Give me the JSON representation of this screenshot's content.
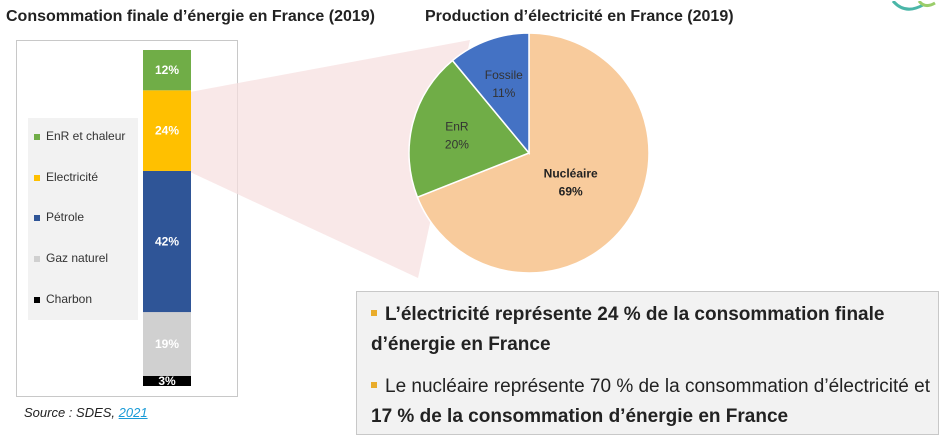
{
  "left_title": "Consommation finale d’énergie en France (2019)",
  "right_title": "Production d’électricité en France (2019)",
  "chart_data": [
    {
      "type": "bar",
      "stacked": true,
      "title": "Consommation finale d’énergie en France (2019)",
      "legend": [
        {
          "name": "EnR et chaleur",
          "color": "#70ad47"
        },
        {
          "name": "Electricité",
          "color": "#ffc000"
        },
        {
          "name": "Pétrole",
          "color": "#2f5597"
        },
        {
          "name": "Gaz naturel",
          "color": "#d0d0d0"
        },
        {
          "name": "Charbon",
          "color": "#000000"
        }
      ],
      "segments": [
        {
          "name": "Charbon",
          "value": 3,
          "label": "3%",
          "color": "#000000",
          "label_color": "#ffffff"
        },
        {
          "name": "Gaz naturel",
          "value": 19,
          "label": "19%",
          "color": "#d0d0d0",
          "label_color": "#ffffff"
        },
        {
          "name": "Pétrole",
          "value": 42,
          "label": "42%",
          "color": "#2f5597",
          "label_color": "#ffffff"
        },
        {
          "name": "Electricité",
          "value": 24,
          "label": "24%",
          "color": "#ffc000",
          "label_color": "#ffffff"
        },
        {
          "name": "EnR et chaleur",
          "value": 12,
          "label": "12%",
          "color": "#70ad47",
          "label_color": "#ffffff"
        }
      ]
    },
    {
      "type": "pie",
      "title": "Production d’électricité en France (2019)",
      "slices": [
        {
          "name": "Nucléaire",
          "value": 69,
          "label": "69%",
          "color": "#f8cb9c",
          "label_color": "#222222",
          "bold": true
        },
        {
          "name": "EnR",
          "value": 20,
          "label": "20%",
          "color": "#70ad47",
          "label_color": "#333333",
          "bold": false
        },
        {
          "name": "Fossile",
          "value": 11,
          "label": "11%",
          "color": "#4472c4",
          "label_color": "#333333",
          "bold": false
        }
      ]
    }
  ],
  "callout": {
    "bullet1": "L’électricité représente 24 % de la consommation finale d’énergie en France",
    "bullet2_part1": "Le nucléaire représente 70 % de la consommation d’électricité et ",
    "bullet2_part2": "17 % de la consommation d’énergie en France",
    "bullet_color": "#e9ac2b"
  },
  "source": {
    "prefix": "Source : SDES, ",
    "link": "2021"
  }
}
